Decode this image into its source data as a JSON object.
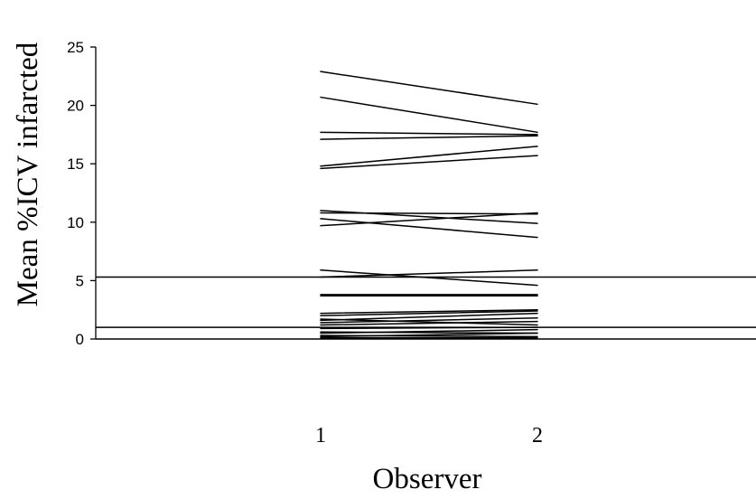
{
  "chart_data": {
    "type": "line",
    "title": "",
    "xlabel": "Observer",
    "ylabel": "Mean %ICV infarcted",
    "x": [
      1,
      2
    ],
    "x_tick_labels": [
      "1",
      "2"
    ],
    "y_ticks": [
      0,
      5,
      10,
      15,
      20,
      25
    ],
    "y_tick_labels": [
      "0",
      "5",
      "10",
      "15",
      "20",
      "25"
    ],
    "ylim": [
      0,
      25
    ],
    "grid": false,
    "legend": "none",
    "series": [
      {
        "values": [
          22.9,
          20.1
        ]
      },
      {
        "values": [
          20.7,
          17.7
        ]
      },
      {
        "values": [
          17.7,
          17.5
        ]
      },
      {
        "values": [
          17.1,
          17.4
        ]
      },
      {
        "values": [
          14.8,
          16.5
        ]
      },
      {
        "values": [
          14.6,
          15.7
        ]
      },
      {
        "values": [
          11.0,
          9.9
        ]
      },
      {
        "values": [
          10.8,
          10.7
        ]
      },
      {
        "values": [
          10.3,
          8.7
        ]
      },
      {
        "values": [
          9.7,
          10.8
        ]
      },
      {
        "values": [
          5.9,
          4.6
        ]
      },
      {
        "values": [
          5.3,
          5.9
        ]
      },
      {
        "values": [
          3.8,
          3.8
        ]
      },
      {
        "values": [
          3.7,
          3.7
        ]
      },
      {
        "values": [
          2.2,
          2.5
        ]
      },
      {
        "values": [
          2.0,
          2.4
        ]
      },
      {
        "values": [
          1.7,
          1.2
        ]
      },
      {
        "values": [
          1.6,
          2.2
        ]
      },
      {
        "values": [
          1.4,
          1.8
        ]
      },
      {
        "values": [
          1.2,
          1.5
        ]
      },
      {
        "values": [
          0.9,
          1.0
        ]
      },
      {
        "values": [
          0.6,
          0.5
        ]
      },
      {
        "values": [
          0.5,
          0.8
        ]
      },
      {
        "values": [
          0.3,
          0.2
        ]
      },
      {
        "values": [
          0.2,
          0.5
        ]
      },
      {
        "values": [
          0.1,
          0.1
        ]
      }
    ],
    "reference_lines": [
      5.3,
      1.0,
      0.0
    ]
  }
}
